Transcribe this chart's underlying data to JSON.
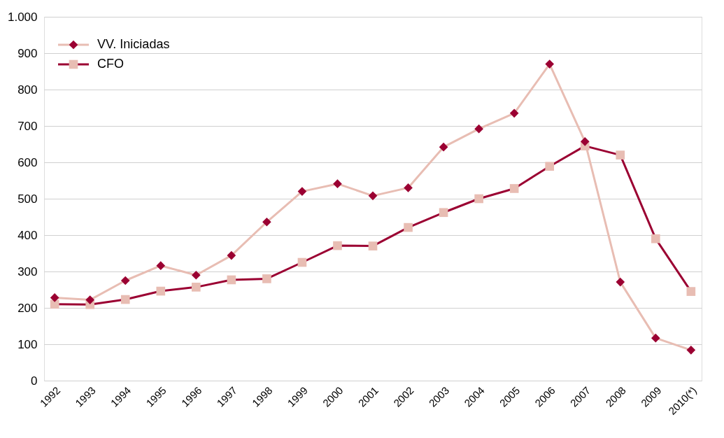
{
  "chart_data": {
    "type": "line",
    "categories": [
      "1992",
      "1993",
      "1994",
      "1995",
      "1996",
      "1997",
      "1998",
      "1999",
      "2000",
      "2001",
      "2002",
      "2003",
      "2004",
      "2005",
      "2006",
      "2007",
      "2008",
      "2009",
      "2010(*)"
    ],
    "series": [
      {
        "name": "VV. Iniciadas",
        "color": "#e8bdb3",
        "marker": "diamond",
        "colors": [
          "#9b0032",
          "#9b0032",
          "#9b0032",
          "#9b0032",
          "#9b0032",
          "#9b0032",
          "#9b0032",
          "#9b0032",
          "#9b0032",
          "#9b0032",
          "#9b0032",
          "#9b0032",
          "#9b0032",
          "#9b0032",
          "#9b0032",
          "#9b0032",
          "#9b0032",
          "#9b0032",
          "#9b0032"
        ],
        "values": [
          228,
          222,
          275,
          316,
          290,
          344,
          436,
          520,
          541,
          508,
          530,
          642,
          692,
          735,
          870,
          657,
          271,
          117,
          84
        ]
      },
      {
        "name": "CFO",
        "color": "#9b0032",
        "marker": "square",
        "colors": [
          "#e8bdb3",
          "#e8bdb3",
          "#e8bdb3",
          "#e8bdb3",
          "#e8bdb3",
          "#e8bdb3",
          "#e8bdb3",
          "#e8bdb3",
          "#e8bdb3",
          "#e8bdb3",
          "#e8bdb3",
          "#e8bdb3",
          "#e8bdb3",
          "#e8bdb3",
          "#e8bdb3",
          "#e8bdb3",
          "#e8bdb3",
          "#e8bdb3",
          "#e8bdb3"
        ],
        "values": [
          210,
          209,
          223,
          246,
          257,
          277,
          280,
          325,
          371,
          370,
          421,
          462,
          500,
          528,
          589,
          645,
          620,
          390,
          245
        ]
      }
    ],
    "ylim": [
      0,
      1000
    ],
    "yticks": [
      0,
      100,
      200,
      300,
      400,
      500,
      600,
      700,
      800,
      900,
      {
        "value": 1000,
        "label": "1.000"
      }
    ],
    "grid": "y",
    "legend": "top left",
    "line_style": "solid"
  }
}
